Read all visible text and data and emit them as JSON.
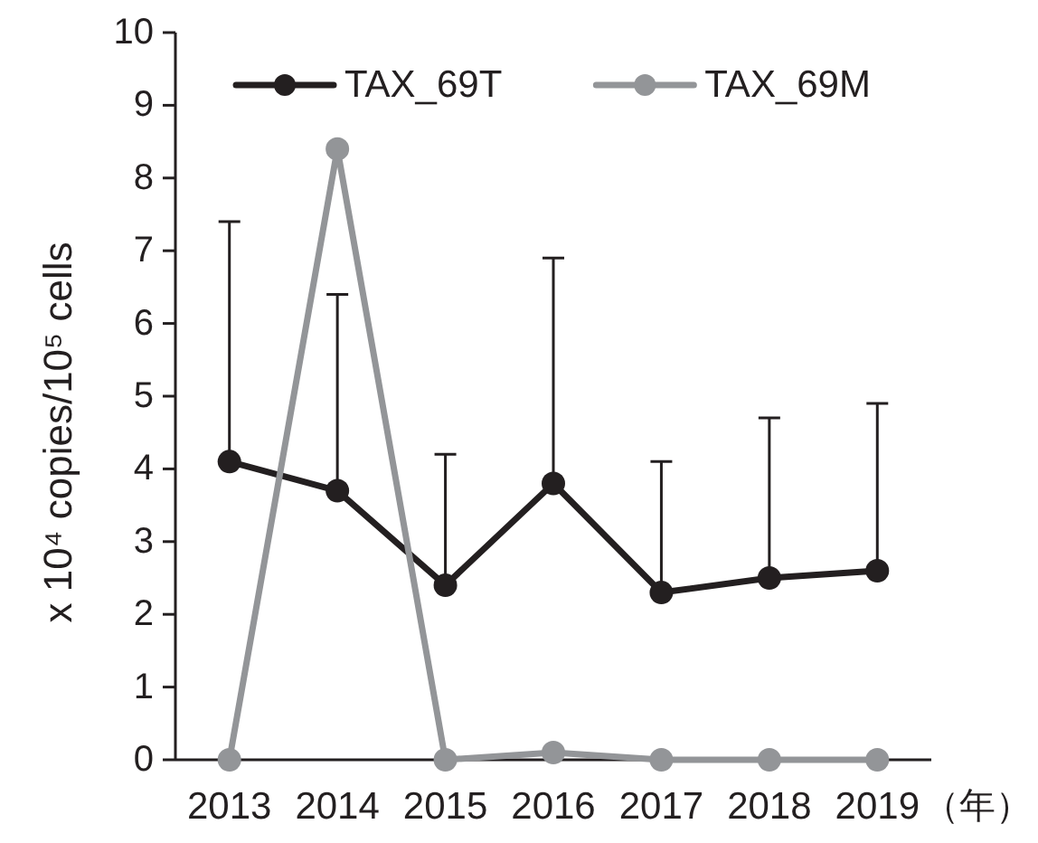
{
  "chart_data": {
    "type": "line",
    "xlabel": "（年）",
    "ylabel": "x 10⁴ copies/10⁵ cells",
    "categories": [
      "2013",
      "2014",
      "2015",
      "2016",
      "2017",
      "2018",
      "2019"
    ],
    "series": [
      {
        "name": "TAX_69T",
        "color": "#231f20",
        "values": [
          4.1,
          3.7,
          2.4,
          3.8,
          2.3,
          2.5,
          2.6
        ],
        "errors": [
          [
            4.1,
            7.4
          ],
          [
            3.7,
            6.4
          ],
          [
            2.4,
            4.2
          ],
          [
            3.8,
            6.9
          ],
          [
            2.3,
            4.1
          ],
          [
            2.5,
            4.7
          ],
          [
            2.6,
            4.9
          ]
        ]
      },
      {
        "name": "TAX_69M",
        "color": "#939598",
        "values": [
          0,
          8.4,
          0,
          0.1,
          0,
          0,
          0
        ]
      }
    ],
    "ylim": [
      0,
      10
    ],
    "yticks": [
      0,
      1,
      2,
      3,
      4,
      5,
      6,
      7,
      8,
      9,
      10
    ],
    "grid": false,
    "legend": "top",
    "marker": "circle",
    "line_style": "solid"
  }
}
